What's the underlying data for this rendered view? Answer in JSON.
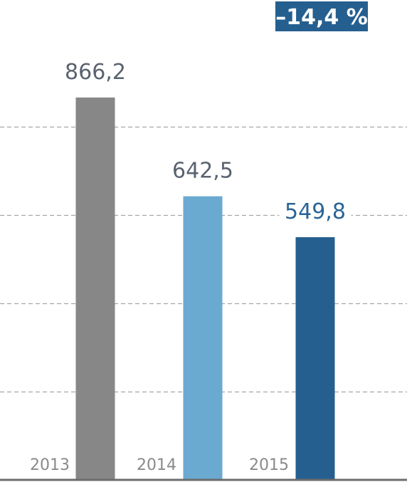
{
  "chart_data": {
    "type": "bar",
    "categories": [
      "2013",
      "2014",
      "2015"
    ],
    "values": [
      866.2,
      642.5,
      549.8
    ],
    "value_labels": [
      "866,2",
      "642,5",
      "549,8"
    ],
    "ylim": [
      0,
      1000
    ],
    "grid": true,
    "annotations": [
      {
        "text": "–14,4 %"
      }
    ]
  },
  "colors": {
    "bars": [
      "#878787",
      "#6aaad0",
      "#255f8f"
    ],
    "value_labels": [
      "#5a6270",
      "#5a6270",
      "#2a6496"
    ],
    "badge_bg": "#255f8f",
    "badge_text": "#ffffff"
  }
}
